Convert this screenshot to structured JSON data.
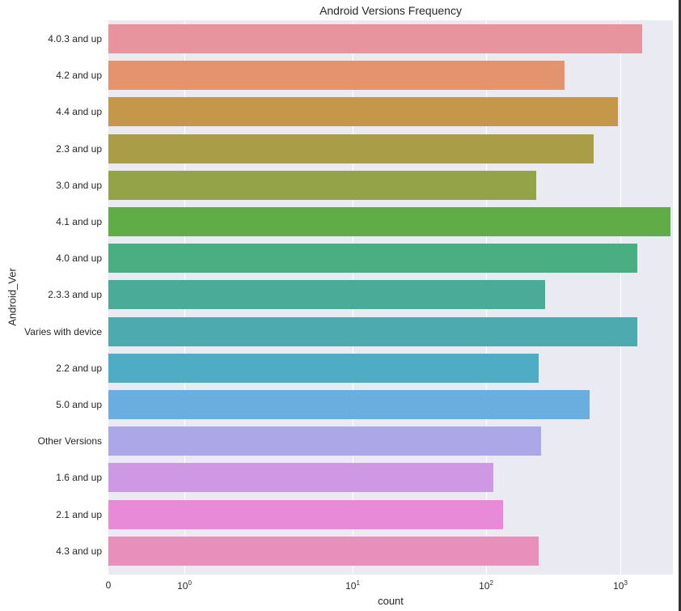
{
  "chart_data": {
    "type": "bar",
    "orientation": "horizontal",
    "title": "Android Versions Frequency",
    "xlabel": "count",
    "ylabel": "Android_Ver",
    "xscale": "symlog",
    "xticks": [
      "0",
      "10^0",
      "10^1",
      "10^2",
      "10^3"
    ],
    "xlim": [
      0,
      2700
    ],
    "grid": true,
    "categories": [
      "4.0.3 and up",
      "4.2 and up",
      "4.4 and up",
      "2.3 and up",
      "3.0 and up",
      "4.1 and up",
      "4.0 and up",
      "2.3.3 and up",
      "Varies with device",
      "2.2 and up",
      "5.0 and up",
      "Other Versions",
      "1.6 and up",
      "2.1 and up",
      "4.3 and up"
    ],
    "values": [
      1456,
      383,
      960,
      631,
      236,
      2370,
      1340,
      274,
      1340,
      244,
      589,
      256,
      112,
      133,
      244
    ],
    "colors": [
      "#e8949f",
      "#e4936f",
      "#c4974a",
      "#aa9d47",
      "#94a348",
      "#60ad47",
      "#49af82",
      "#4aab98",
      "#4daaae",
      "#4eacc4",
      "#6aaee0",
      "#aca8e8",
      "#cf98e5",
      "#e88ad8",
      "#e88fbc"
    ]
  },
  "ticks": {
    "x": [
      {
        "base": "0",
        "exp": "",
        "pos": 0
      },
      {
        "base": "10",
        "exp": "0",
        "pos": 94
      },
      {
        "base": "10",
        "exp": "1",
        "pos": 302
      },
      {
        "base": "10",
        "exp": "2",
        "pos": 467
      },
      {
        "base": "10",
        "exp": "3",
        "pos": 633
      }
    ]
  }
}
